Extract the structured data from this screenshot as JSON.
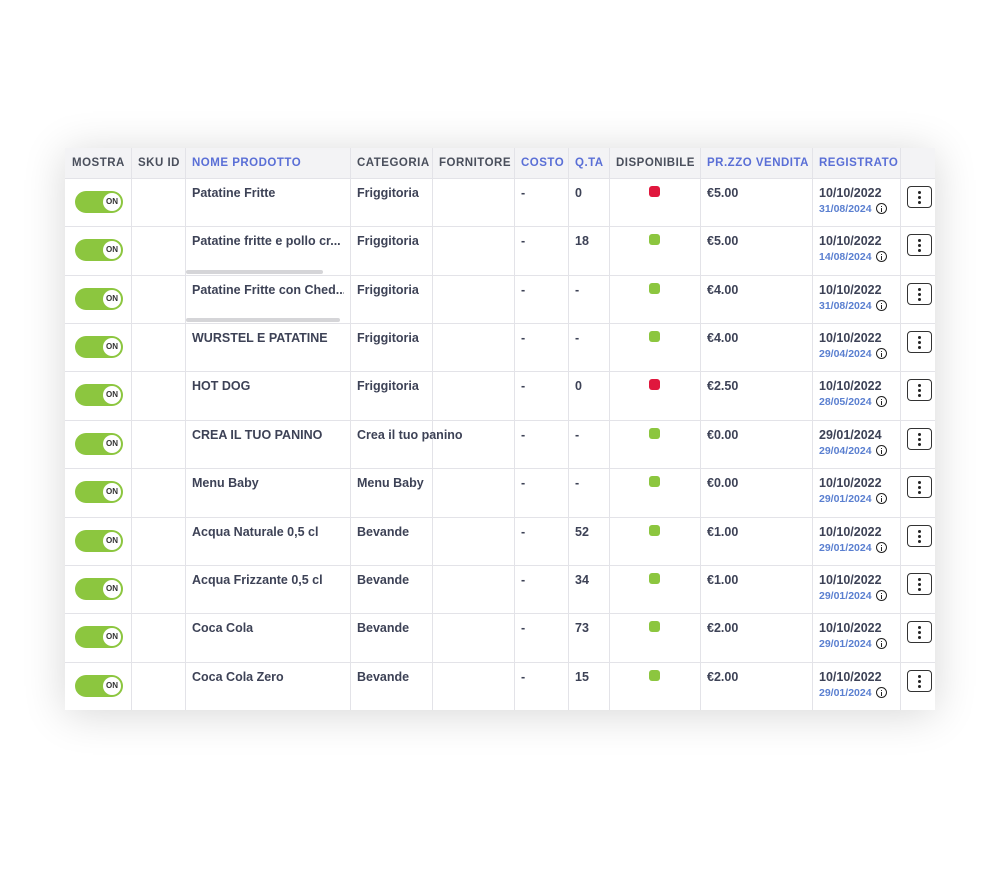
{
  "table": {
    "headers": [
      "MOSTRA",
      "SKU ID",
      "NOME PRODOTTO",
      "CATEGORIA",
      "FORNITORE",
      "COSTO",
      "Q.TA",
      "DISPONIBILE",
      "PR.ZZO VENDITA",
      "REGISTRATO"
    ],
    "header_colors": [
      "#4a4f5c",
      "#4a4f5c",
      "#5a6fd6",
      "#4a4f5c",
      "#4a4f5c",
      "#5a6fd6",
      "#5a6fd6",
      "#4a4f5c",
      "#5a6fd6",
      "#5a6fd6"
    ],
    "rows": [
      {
        "mostra": "ON",
        "nome": "Patatine Fritte",
        "categoria": "Friggitoria",
        "costo": "-",
        "qta": "0",
        "disponibile": "#e0173d",
        "prezzo": "€5.00",
        "registrato": "10/10/2022",
        "aggiornato": "31/08/2024"
      },
      {
        "mostra": "ON",
        "nome": "Patatine fritte e pollo cr...",
        "categoria": "Friggitoria",
        "costo": "-",
        "qta": "18",
        "disponibile": "#8cc63f",
        "prezzo": "€5.00",
        "registrato": "10/10/2022",
        "aggiornato": "14/08/2024"
      },
      {
        "mostra": "ON",
        "nome": "Patatine Fritte con Ched...",
        "categoria": "Friggitoria",
        "costo": "-",
        "qta": "-",
        "disponibile": "#8cc63f",
        "prezzo": "€4.00",
        "registrato": "10/10/2022",
        "aggiornato": "31/08/2024"
      },
      {
        "mostra": "ON",
        "nome": "WURSTEL E PATATINE",
        "categoria": "Friggitoria",
        "costo": "-",
        "qta": "-",
        "disponibile": "#8cc63f",
        "prezzo": "€4.00",
        "registrato": "10/10/2022",
        "aggiornato": "29/04/2024"
      },
      {
        "mostra": "ON",
        "nome": "HOT DOG",
        "categoria": "Friggitoria",
        "costo": "-",
        "qta": "0",
        "disponibile": "#e0173d",
        "prezzo": "€2.50",
        "registrato": "10/10/2022",
        "aggiornato": "28/05/2024"
      },
      {
        "mostra": "ON",
        "nome": "CREA IL TUO PANINO",
        "categoria": "Crea il tuo panino",
        "costo": "-",
        "qta": "-",
        "disponibile": "#8cc63f",
        "prezzo": "€0.00",
        "registrato": "29/01/2024",
        "aggiornato": "29/04/2024"
      },
      {
        "mostra": "ON",
        "nome": "Menu Baby",
        "categoria": "Menu Baby",
        "costo": "-",
        "qta": "-",
        "disponibile": "#8cc63f",
        "prezzo": "€0.00",
        "registrato": "10/10/2022",
        "aggiornato": "29/01/2024"
      },
      {
        "mostra": "ON",
        "nome": "Acqua Naturale 0,5 cl",
        "categoria": "Bevande",
        "costo": "-",
        "qta": "52",
        "disponibile": "#8cc63f",
        "prezzo": "€1.00",
        "registrato": "10/10/2022",
        "aggiornato": "29/01/2024"
      },
      {
        "mostra": "ON",
        "nome": "Acqua Frizzante 0,5 cl",
        "categoria": "Bevande",
        "costo": "-",
        "qta": "34",
        "disponibile": "#8cc63f",
        "prezzo": "€1.00",
        "registrato": "10/10/2022",
        "aggiornato": "29/01/2024"
      },
      {
        "mostra": "ON",
        "nome": "Coca Cola",
        "categoria": "Bevande",
        "costo": "-",
        "qta": "73",
        "disponibile": "#8cc63f",
        "prezzo": "€2.00",
        "registrato": "10/10/2022",
        "aggiornato": "29/01/2024"
      },
      {
        "mostra": "ON",
        "nome": "Coca Cola Zero",
        "categoria": "Bevande",
        "costo": "-",
        "qta": "15",
        "disponibile": "#8cc63f",
        "prezzo": "€2.00",
        "registrato": "10/10/2022",
        "aggiornato": "29/01/2024"
      }
    ]
  }
}
